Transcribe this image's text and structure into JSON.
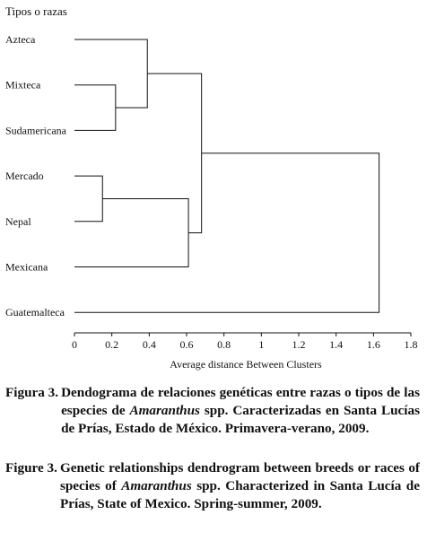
{
  "chart_data": {
    "type": "dendrogram",
    "ylabel": "Tipos o razas",
    "xlabel": "Average distance Between Clusters",
    "xlim": [
      0,
      1.8
    ],
    "xticks": [
      0,
      0.2,
      0.4,
      0.6,
      0.8,
      1,
      1.2,
      1.4,
      1.6,
      1.8
    ],
    "xtick_labels": [
      "0",
      "0.2",
      "0.4",
      "0.6",
      "0.8",
      "1",
      "1.2",
      "1.4",
      "1.6",
      "1.8"
    ],
    "leaves": [
      "Azteca",
      "Mixteca",
      "Sudamericana",
      "Mercado",
      "Nepal",
      "Mexicana",
      "Guatemalteca"
    ],
    "merges": [
      {
        "left": "Mixteca",
        "right": "Sudamericana",
        "distance": 0.22
      },
      {
        "left": "Mercado",
        "right": "Nepal",
        "distance": 0.15
      },
      {
        "left": "Azteca",
        "right": "Mixteca+Sudamericana",
        "distance": 0.39
      },
      {
        "left": "Mercado+Nepal",
        "right": "Mexicana",
        "distance": 0.61
      },
      {
        "left": "Azteca+Mixteca+Sudamericana",
        "right": "Mercado+Nepal+Mexicana",
        "distance": 0.68
      },
      {
        "left": "Azteca+Mixteca+Sudamericana+Mercado+Nepal+Mexicana",
        "right": "Guatemalteca",
        "distance": 1.63
      }
    ]
  },
  "caption_es": {
    "label": "Figura 3.",
    "text_before": "Dendograma de relaciones genéticas entre razas o tipos de las especies de ",
    "species": "Amaranthus",
    "text_after": " spp. Caracterizadas en Santa Lucías de Prías, Estado de México. Primavera-verano, 2009."
  },
  "caption_en": {
    "label": "Figure 3.",
    "text_before": "Genetic relationships dendrogram between breeds or races of species of ",
    "species": "Amaranthus",
    "text_after": " spp. Characterized in Santa Lucía de Prías, State of Mexico. Spring-summer, 2009."
  }
}
